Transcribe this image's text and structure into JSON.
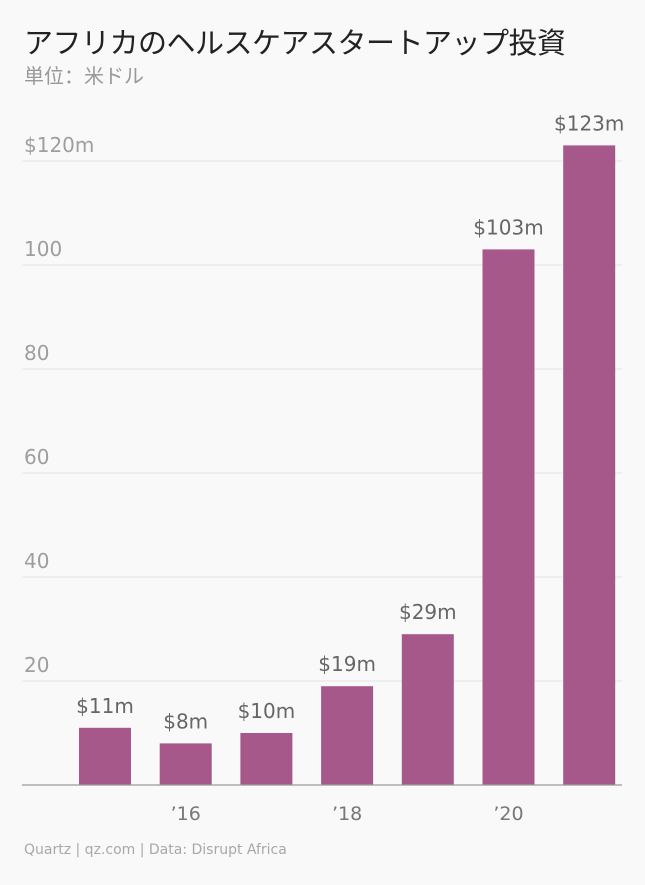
{
  "header": {
    "title": "アフリカのヘルスケアスタートアップ投資",
    "subtitle": "単位：米ドル"
  },
  "footer": {
    "source": "Quartz | qz.com | Data: Disrupt Africa"
  },
  "chart_data": {
    "type": "bar",
    "title": "アフリカのヘルスケアスタートアップ投資",
    "subtitle": "単位：米ドル",
    "xlabel": "",
    "ylabel": "",
    "categories": [
      "2015",
      "2016",
      "2017",
      "2018",
      "2019",
      "2020",
      "2021"
    ],
    "values": [
      11,
      8,
      10,
      19,
      29,
      103,
      123
    ],
    "data_labels": [
      "$11m",
      "$8m",
      "$10m",
      "$19m",
      "$29m",
      "$103m",
      "$123m"
    ],
    "x_tick_labels": [
      "",
      "’16",
      "",
      "’18",
      "",
      "’20",
      ""
    ],
    "y_ticks": [
      20,
      40,
      60,
      80,
      100,
      120
    ],
    "y_tick_labels": [
      "20",
      "40",
      "60",
      "80",
      "100",
      "$120m"
    ],
    "ylim": [
      0,
      123
    ],
    "grid": true,
    "legend": "none",
    "bar_color": "#a6588a"
  }
}
